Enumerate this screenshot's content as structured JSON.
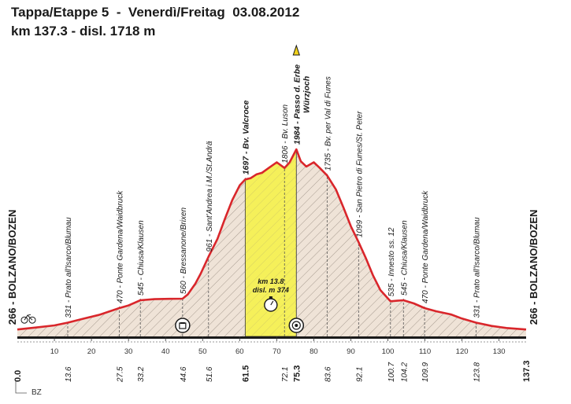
{
  "header": {
    "title_line1": "Tappa/Etappe 5  -  Venerdì/Freitag  03.08.2012",
    "title_line2": "km 137.3 - disl. 1718 m"
  },
  "footer": {
    "corner_label": "BZ"
  },
  "chart_data": {
    "type": "area",
    "title": "Tappa/Etappe 5  -  Venerdì/Freitag  03.08.2012",
    "subtitle": "km 137.3 - disl. 1718 m",
    "x_ticks": [
      10,
      20,
      30,
      40,
      50,
      60,
      70,
      80,
      90,
      100,
      110,
      120,
      130
    ],
    "xlim": [
      0,
      137.3
    ],
    "ylim": [
      200,
      2050
    ],
    "profile": [
      [
        0,
        266
      ],
      [
        5,
        285
      ],
      [
        10,
        305
      ],
      [
        13.6,
        331
      ],
      [
        18,
        370
      ],
      [
        22,
        405
      ],
      [
        27.5,
        470
      ],
      [
        30,
        495
      ],
      [
        33.2,
        545
      ],
      [
        37,
        555
      ],
      [
        41,
        558
      ],
      [
        44.6,
        560
      ],
      [
        46,
        600
      ],
      [
        48,
        700
      ],
      [
        49.5,
        800
      ],
      [
        51.6,
        961
      ],
      [
        54,
        1130
      ],
      [
        56,
        1320
      ],
      [
        58,
        1500
      ],
      [
        60,
        1640
      ],
      [
        61.5,
        1697
      ],
      [
        63,
        1710
      ],
      [
        64.5,
        1745
      ],
      [
        66,
        1760
      ],
      [
        68,
        1810
      ],
      [
        70,
        1860
      ],
      [
        72.1,
        1806
      ],
      [
        73.5,
        1860
      ],
      [
        75.3,
        1984
      ],
      [
        76.5,
        1870
      ],
      [
        78,
        1820
      ],
      [
        80,
        1860
      ],
      [
        81.5,
        1810
      ],
      [
        83.6,
        1735
      ],
      [
        86,
        1600
      ],
      [
        88,
        1430
      ],
      [
        90,
        1250
      ],
      [
        92.1,
        1099
      ],
      [
        94,
        950
      ],
      [
        96,
        780
      ],
      [
        98,
        640
      ],
      [
        100.7,
        535
      ],
      [
        102.5,
        540
      ],
      [
        104.2,
        545
      ],
      [
        107,
        515
      ],
      [
        109.9,
        470
      ],
      [
        113,
        440
      ],
      [
        117,
        410
      ],
      [
        120,
        370
      ],
      [
        123.8,
        331
      ],
      [
        128,
        300
      ],
      [
        132,
        280
      ],
      [
        137.3,
        266
      ]
    ],
    "highlight_range_km": [
      61.5,
      75.3
    ],
    "highlight_annotation": {
      "line1": "km 13.8",
      "line2": "disl. m 374"
    },
    "start_point": {
      "km": "0.0",
      "label": "266 - BOLZANO/BOZEN",
      "alt": 266
    },
    "finish_point": {
      "km": "137.3",
      "label": "266 - BOLZANO/BOZEN",
      "alt": 266
    },
    "waypoints": [
      {
        "km": 13.6,
        "km_label": "13.6",
        "label": "331 - Prato all'Isarco/Blumau",
        "bold": false
      },
      {
        "km": 27.5,
        "km_label": "27.5",
        "label": "470 - Ponte Gardena/Waidbruck",
        "bold": false
      },
      {
        "km": 33.2,
        "km_label": "33.2",
        "label": "545 - Chiusa/Klausen",
        "bold": false
      },
      {
        "km": 44.6,
        "km_label": "44.6",
        "label": "560 - Bressanone/Brixen",
        "bold": false
      },
      {
        "km": 51.6,
        "km_label": "51.6",
        "label": "961 - Sant'Andrea i.M./St.Andrä",
        "bold": false
      },
      {
        "km": 61.5,
        "km_label": "61.5",
        "label": "1697 - Bv. Valcroce",
        "bold": true
      },
      {
        "km": 72.1,
        "km_label": "72.1",
        "label": "1806 - Bv. Luson",
        "bold": false
      },
      {
        "km": 75.3,
        "km_label": "75.3",
        "label": "1984 - Passo d. Erbe",
        "label2": "Würzjoch",
        "bold": true
      },
      {
        "km": 83.6,
        "km_label": "83.6",
        "label": "1735 - Bv. per Val di Funes",
        "bold": false
      },
      {
        "km": 92.1,
        "km_label": "92.1",
        "label": "1099 - San Pietro di Funes/St. Peter",
        "bold": false
      },
      {
        "km": 100.7,
        "km_label": "100.7",
        "label": "535 - Innesto ss. 12",
        "bold": false
      },
      {
        "km": 104.2,
        "km_label": "104.2",
        "label": "545 - Chiusa/Klausen",
        "bold": false
      },
      {
        "km": 109.9,
        "km_label": "109.9",
        "label": "470 - Ponte Gardena/Waidbruck",
        "bold": false
      },
      {
        "km": 123.8,
        "km_label": "123.8",
        "label": "331 - Prato all'Isarco/Blumau",
        "bold": false
      }
    ],
    "icons": [
      {
        "km": 44.6,
        "name": "feed-zone-icon"
      },
      {
        "km": 75.3,
        "name": "summit-icon"
      }
    ],
    "colors": {
      "profile_line": "#d9262b",
      "fill": "#efe3d7",
      "highlight": "#f5f05a",
      "axis": "#1a1a1a"
    }
  }
}
